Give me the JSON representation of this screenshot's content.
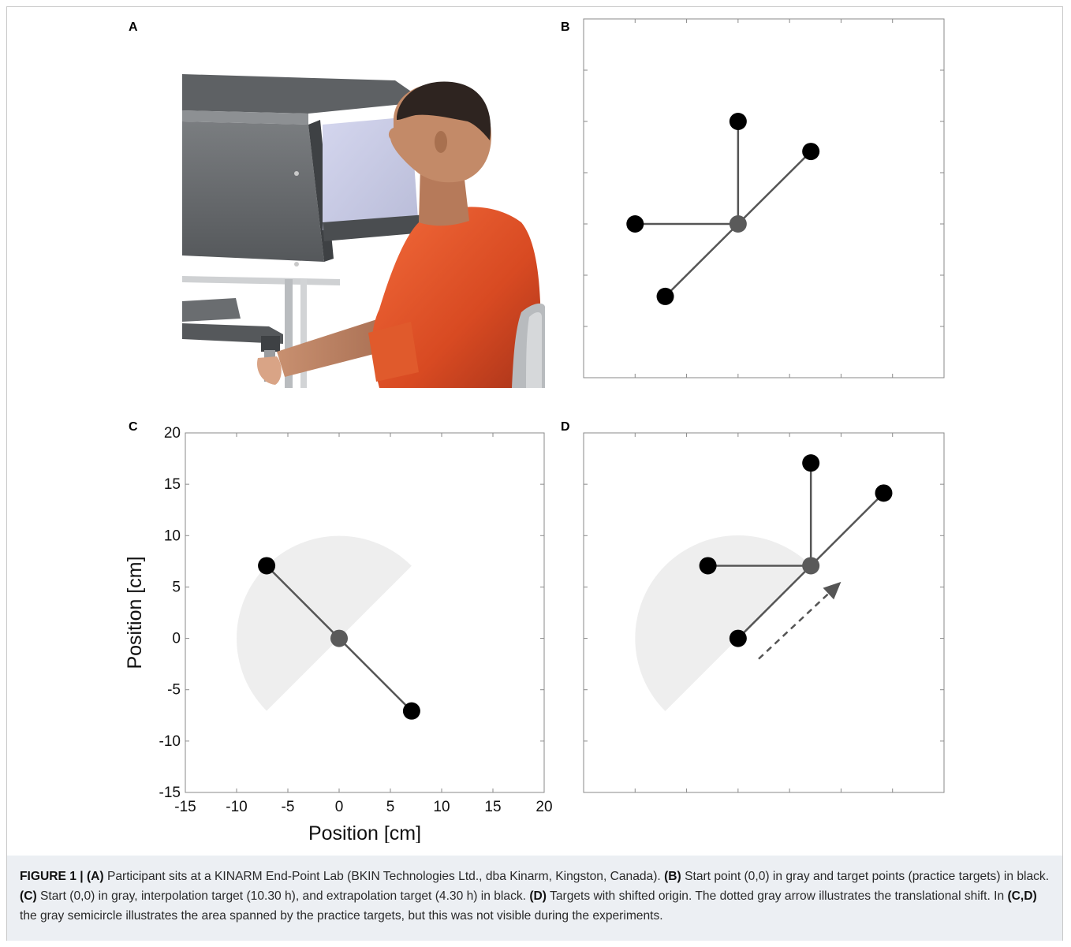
{
  "figure": {
    "panel_labels": [
      "A",
      "B",
      "C",
      "D"
    ],
    "caption": {
      "figure_label": "FIGURE 1 |",
      "parts": [
        {
          "label": "(A)",
          "text": " Participant sits at a KINARM End-Point Lab (BKIN Technologies Ltd., dba Kinarm, Kingston, Canada). "
        },
        {
          "label": "(B)",
          "text": " Start point (0,0) in gray and target points (practice targets) in black. "
        },
        {
          "label": "(C)",
          "text": " Start (0,0) in gray, interpolation target (10.30 h), and extrapolation target (4.30 h) in black. "
        },
        {
          "label": "(D)",
          "text": " Targets with shifted origin. The dotted gray arrow illustrates the translational shift. In "
        },
        {
          "label": "(C,D)",
          "text": " the gray semicircle illustrates the area spanned by the practice targets, but this was not visible during the experiments."
        }
      ]
    }
  },
  "chart_data": [
    {
      "panel": "B",
      "type": "scatter",
      "xlim": [
        -15,
        20
      ],
      "ylim": [
        -15,
        20
      ],
      "axis_labels_shown": false,
      "start": {
        "x": 0,
        "y": 0,
        "color": "#5a5a5a"
      },
      "targets": [
        {
          "x": 0,
          "y": 10
        },
        {
          "x": 7.07,
          "y": 7.07
        },
        {
          "x": -10,
          "y": 0
        },
        {
          "x": -7.07,
          "y": -7.07
        }
      ],
      "target_color": "#000000",
      "line_color": "#555555"
    },
    {
      "panel": "C",
      "type": "scatter",
      "xlim": [
        -15,
        20
      ],
      "ylim": [
        -15,
        20
      ],
      "xlabel": "Position [cm]",
      "ylabel": "Position [cm]",
      "xticks": [
        "-15",
        "-10",
        "-5",
        "0",
        "5",
        "10",
        "15",
        "20"
      ],
      "yticks": [
        "20",
        "15",
        "10",
        "5",
        "0",
        "-5",
        "-10",
        "-15"
      ],
      "start": {
        "x": 0,
        "y": 0,
        "color": "#5a5a5a"
      },
      "targets": [
        {
          "x": -7.07,
          "y": 7.07
        },
        {
          "x": 7.07,
          "y": -7.07
        }
      ],
      "semicircle": {
        "cx": 0,
        "cy": 0,
        "r": 10,
        "from_deg": 45,
        "to_deg": 225,
        "color": "#eeeeee"
      },
      "target_color": "#000000",
      "line_color": "#555555"
    },
    {
      "panel": "D",
      "type": "scatter",
      "xlim": [
        -15,
        20
      ],
      "ylim": [
        -15,
        20
      ],
      "axis_labels_shown": false,
      "start": {
        "x": 7.07,
        "y": 7.07,
        "color": "#5a5a5a"
      },
      "targets": [
        {
          "x": 7.07,
          "y": 17.07
        },
        {
          "x": 14.14,
          "y": 14.14
        },
        {
          "x": -2.93,
          "y": 7.07
        },
        {
          "x": 0,
          "y": 0
        }
      ],
      "semicircle": {
        "cx": 0,
        "cy": 0,
        "r": 10,
        "from_deg": 45,
        "to_deg": 225,
        "color": "#eeeeee"
      },
      "arrow": {
        "from": [
          2,
          -2
        ],
        "to": [
          10,
          5.5
        ],
        "style": "dashed",
        "color": "#555555"
      },
      "target_color": "#000000",
      "line_color": "#555555"
    }
  ]
}
